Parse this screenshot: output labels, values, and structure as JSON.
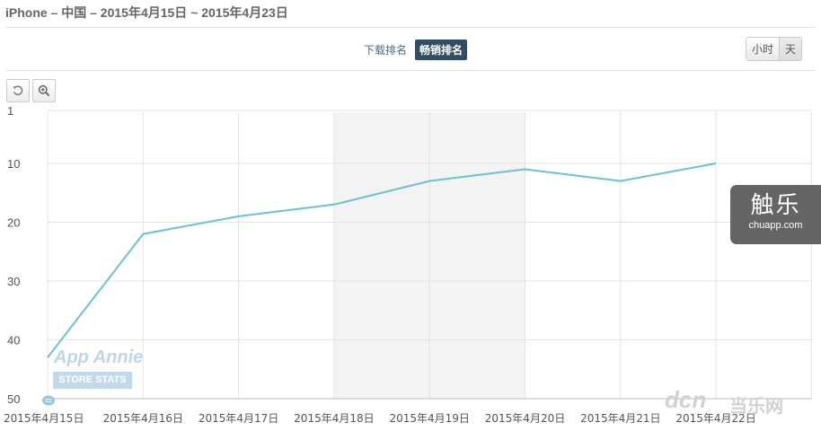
{
  "header": {
    "title": "iPhone – 中国 – 2015年4月15日 ~ 2015年4月23日"
  },
  "tabs": [
    {
      "label": "下载排名",
      "active": false
    },
    {
      "label": "畅销排名",
      "active": true
    }
  ],
  "period": [
    {
      "label": "小时",
      "selected": false
    },
    {
      "label": "天",
      "selected": true
    }
  ],
  "toolbar": {
    "reset_icon": "reset-zoom-icon",
    "zoom_icon": "zoom-in-icon"
  },
  "watermarks": {
    "appannie": "App Annie",
    "storestats": "STORE STATS",
    "badge_big": "触乐",
    "badge_small": "chuapp.com",
    "dcn": "dcn",
    "dcn_cn": "当乐网"
  },
  "colors": {
    "line": "#6cc0d0",
    "grid": "#e4e4e4",
    "weekend_band": "#f3f3f3",
    "axis_text": "#555555"
  },
  "chart_data": {
    "type": "line",
    "title": "",
    "xlabel": "",
    "ylabel": "",
    "y_reversed": true,
    "ylim": [
      1,
      50
    ],
    "y_ticks": [
      1,
      10,
      20,
      30,
      40,
      50
    ],
    "categories": [
      "2015年4月15日",
      "2015年4月16日",
      "2015年4月17日",
      "2015年4月18日",
      "2015年4月19日",
      "2015年4月20日",
      "2015年4月21日",
      "2015年4月22日"
    ],
    "highlight_range": [
      "2015年4月18日",
      "2015年4月20日"
    ],
    "grid": true,
    "series": [
      {
        "values": [
          43,
          22,
          19,
          17,
          13,
          11,
          13,
          10
        ]
      }
    ]
  }
}
